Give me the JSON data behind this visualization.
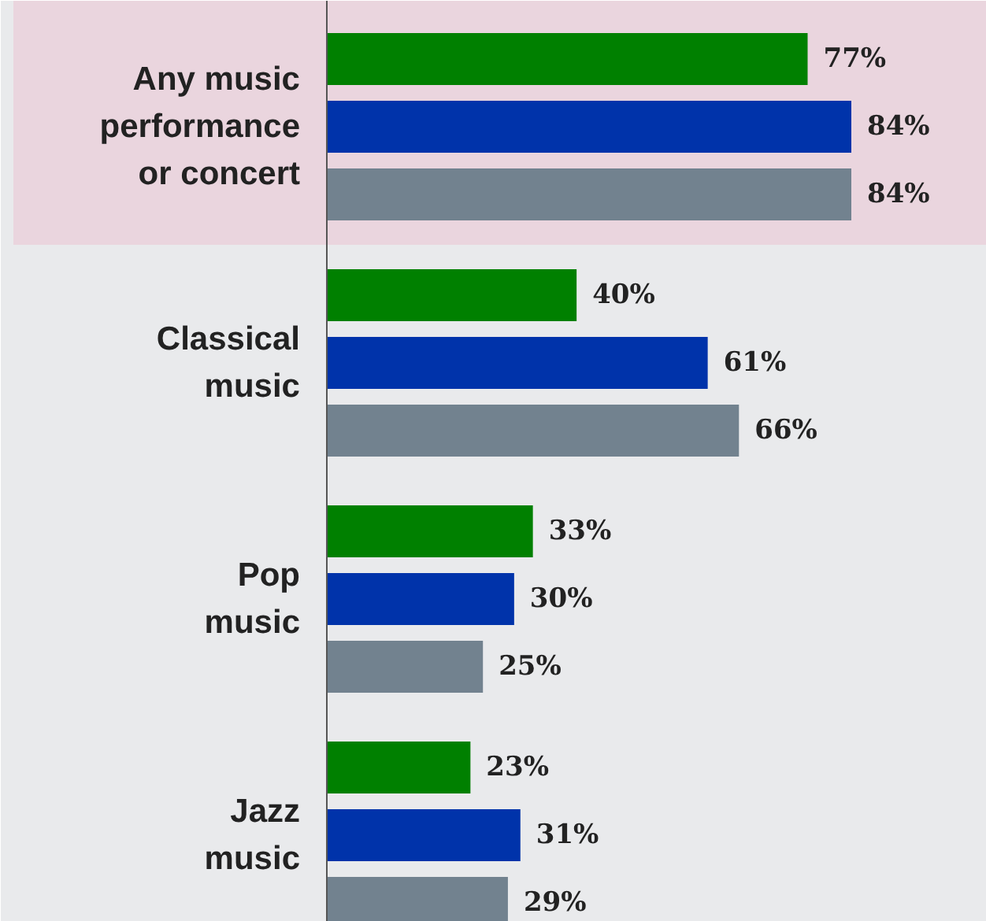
{
  "chart_data": {
    "type": "bar",
    "orientation": "horizontal",
    "categories": [
      "Any music\nperformance\nor concert",
      "Classical\nmusic",
      "Pop\nmusic",
      "Jazz\nmusic"
    ],
    "series": [
      {
        "color": "#008000",
        "values": [
          77,
          40,
          33,
          23
        ],
        "value_labels": [
          "77%",
          "40%",
          "33%",
          "23%"
        ]
      },
      {
        "color": "#0033aa",
        "values": [
          84,
          61,
          30,
          31
        ],
        "value_labels": [
          "84%",
          "61%",
          "30%",
          "31%"
        ]
      },
      {
        "color": "#72828f",
        "values": [
          84,
          66,
          25,
          29
        ],
        "value_labels": [
          "84%",
          "66%",
          "25%",
          "29%"
        ]
      }
    ],
    "bands": [
      {
        "axis": "y",
        "from": "Any music\nperformance\nor concert",
        "to": "Any music\nperformance\nor concert",
        "color": "#ead5de"
      }
    ],
    "grid": false
  }
}
